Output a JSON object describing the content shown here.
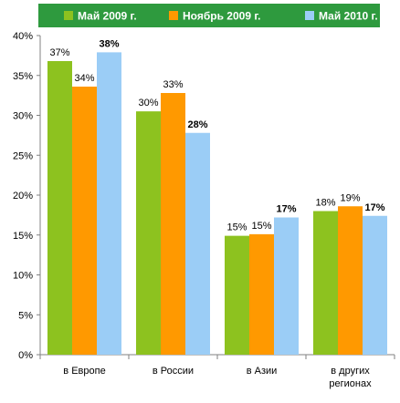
{
  "chart_data": {
    "type": "bar",
    "categories": [
      "в Европе",
      "в России",
      "в Азии",
      "в других регионах"
    ],
    "category_lines": [
      [
        "в Европе"
      ],
      [
        "в России"
      ],
      [
        "в Азии"
      ],
      [
        "в других",
        "регионах"
      ]
    ],
    "series": [
      {
        "name": "Май 2009 г.",
        "color": "#8dc21f",
        "values": [
          36.8,
          30.5,
          14.9,
          18.0
        ],
        "labels": [
          "37%",
          "30%",
          "15%",
          "18%"
        ],
        "bold_labels": false
      },
      {
        "name": "Ноябрь 2009 г.",
        "color": "#ff9900",
        "values": [
          33.6,
          32.8,
          15.1,
          18.6
        ],
        "labels": [
          "34%",
          "33%",
          "15%",
          "19%"
        ],
        "bold_labels": false
      },
      {
        "name": "Май 2010 г.",
        "color": "#9bcdf6",
        "values": [
          37.9,
          27.8,
          17.2,
          17.4
        ],
        "labels": [
          "38%",
          "28%",
          "17%",
          "17%"
        ],
        "bold_labels": true
      }
    ],
    "y_ticks": [
      "0%",
      "5%",
      "10%",
      "15%",
      "20%",
      "25%",
      "30%",
      "35%",
      "40%"
    ],
    "ylim": [
      0,
      40
    ],
    "y_step": 5,
    "grid": false,
    "legend": {
      "placement": "top",
      "background": "#2e9a3e",
      "text_color": "#ffffff"
    }
  }
}
